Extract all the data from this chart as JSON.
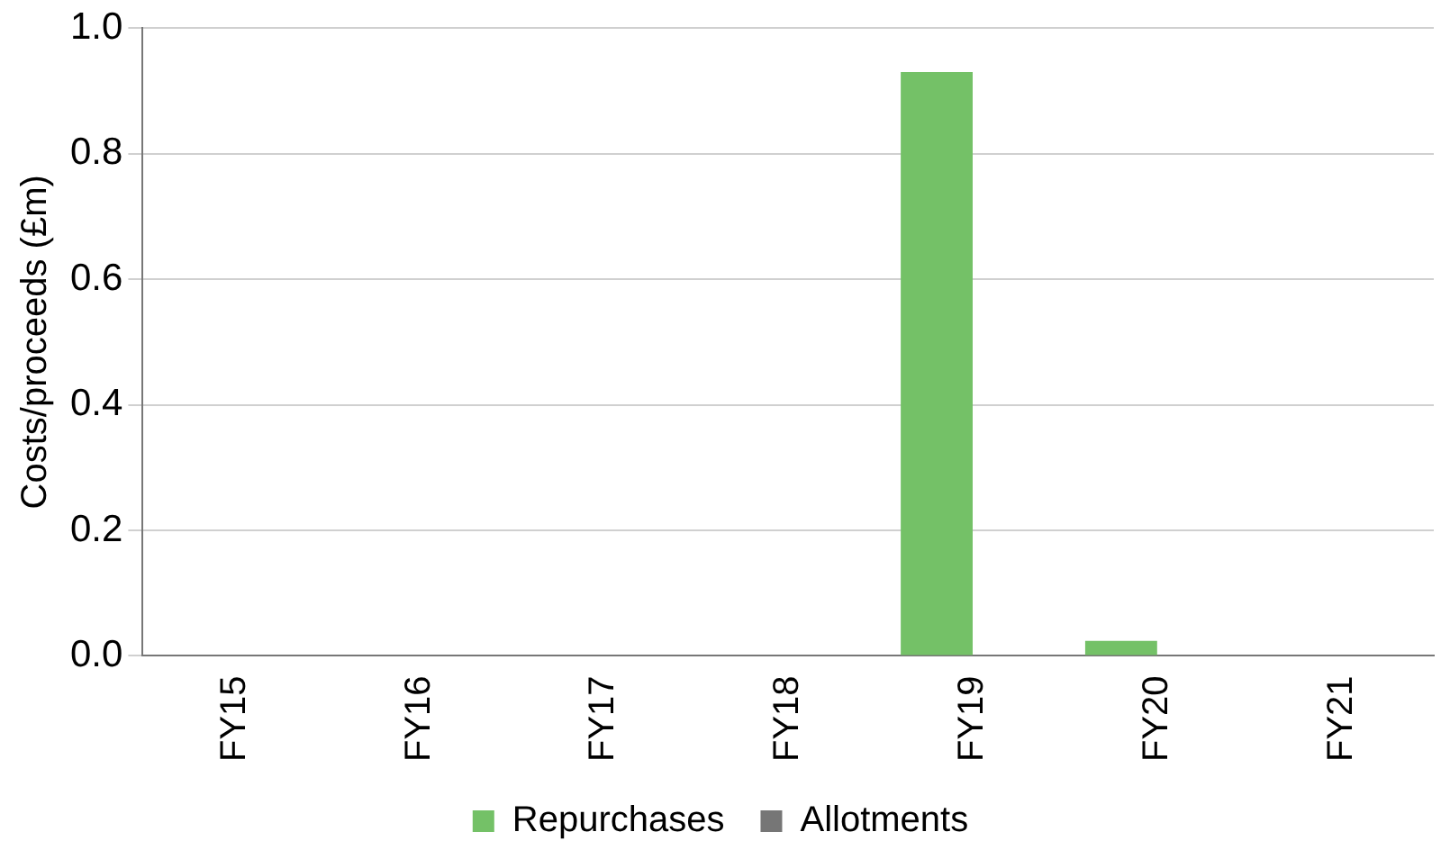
{
  "chart_data": {
    "type": "bar",
    "ylabel": "Costs/proceeds (£m)",
    "categories": [
      "FY15",
      "FY16",
      "FY17",
      "FY18",
      "FY19",
      "FY20",
      "FY21"
    ],
    "series": [
      {
        "name": "Repurchases",
        "color": "#74c167",
        "values": [
          0,
          0,
          0,
          0,
          0.93,
          0.024,
          0
        ]
      },
      {
        "name": "Allotments",
        "color": "#767676",
        "values": [
          0,
          0,
          0,
          0,
          0,
          0,
          0
        ]
      }
    ],
    "ylim": [
      0,
      1
    ],
    "yticks": [
      {
        "value": 0,
        "label": "0.0"
      },
      {
        "value": 0.2,
        "label": "0.2"
      },
      {
        "value": 0.4,
        "label": "0.4"
      },
      {
        "value": 0.6,
        "label": "0.6"
      },
      {
        "value": 0.8,
        "label": "0.8"
      },
      {
        "value": 1,
        "label": "1.0"
      }
    ],
    "grid": "y",
    "legend": "bottom"
  }
}
